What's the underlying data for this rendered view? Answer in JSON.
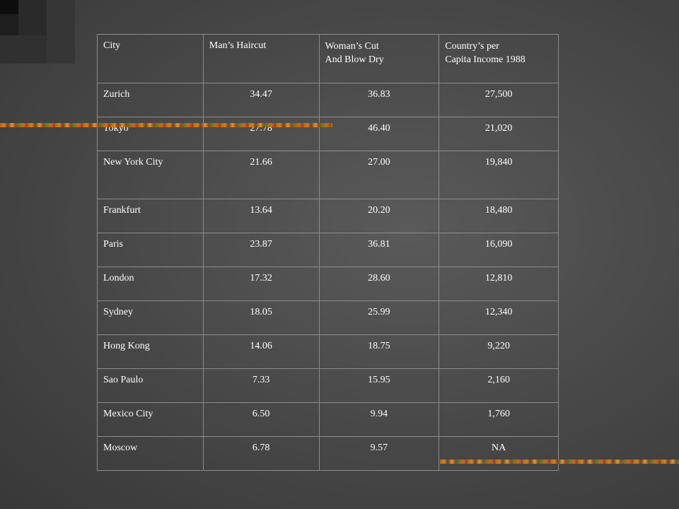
{
  "table": {
    "headers": {
      "city": "City",
      "mans_haircut": "Man’s Haircut",
      "womans_cut_line1": "Woman’s Cut",
      "womans_cut_line2": "And Blow Dry",
      "income_line1": "Country’s per",
      "income_line2": "Capita Income 1988"
    },
    "rows": [
      {
        "city": "Zurich",
        "man": "34.47",
        "woman": "36.83",
        "income": "27,500"
      },
      {
        "city": "Tokyo",
        "man": "27.78",
        "woman": "46.40",
        "income": "21,020"
      },
      {
        "city": "New York City",
        "man": "21.66",
        "woman": "27.00",
        "income": "19,840"
      },
      {
        "city": "Frankfurt",
        "man": "13.64",
        "woman": "20.20",
        "income": "18,480"
      },
      {
        "city": "Paris",
        "man": "23.87",
        "woman": "36.81",
        "income": "16,090"
      },
      {
        "city": "London",
        "man": "17.32",
        "woman": "28.60",
        "income": "12,810"
      },
      {
        "city": "Sydney",
        "man": "18.05",
        "woman": "25.99",
        "income": "12,340"
      },
      {
        "city": "Hong Kong",
        "man": "14.06",
        "woman": "18.75",
        "income": "9,220"
      },
      {
        "city": "Sao Paulo",
        "man": "7.33",
        "woman": "15.95",
        "income": "2,160"
      },
      {
        "city": "Mexico City",
        "man": "6.50",
        "woman": "9.94",
        "income": "1,760"
      },
      {
        "city": "Moscow",
        "man": "6.78",
        "woman": "9.57",
        "income": "NA"
      }
    ]
  }
}
